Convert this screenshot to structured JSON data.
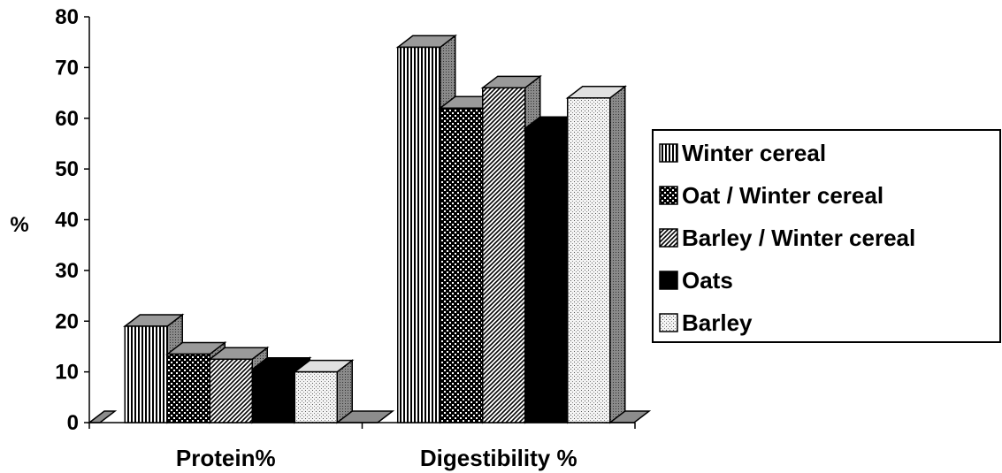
{
  "chart_data": {
    "type": "bar",
    "style": "3d-clustered",
    "categories": [
      "Protein%",
      "Digestibility %"
    ],
    "series": [
      {
        "name": "Winter cereal",
        "values": [
          19,
          74
        ],
        "pattern": "vertical-lines"
      },
      {
        "name": "Oat / Winter cereal",
        "values": [
          13.5,
          62
        ],
        "pattern": "checker"
      },
      {
        "name": "Barley / Winter cereal",
        "values": [
          12.5,
          66
        ],
        "pattern": "diagonal-lines"
      },
      {
        "name": "Oats",
        "values": [
          10.5,
          58
        ],
        "pattern": "solid-black"
      },
      {
        "name": "Barley",
        "values": [
          10,
          64
        ],
        "pattern": "dots"
      }
    ],
    "ylabel": "%",
    "ylim": [
      0,
      80
    ],
    "yticks": [
      "0",
      "10",
      "20",
      "30",
      "40",
      "50",
      "60",
      "70",
      "80"
    ],
    "legend": "right",
    "grid": false
  }
}
